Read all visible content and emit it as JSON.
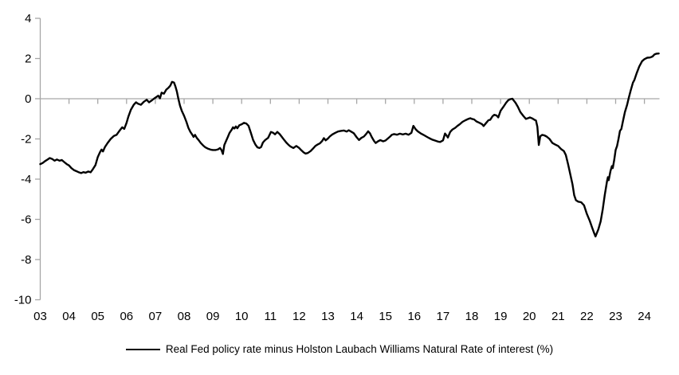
{
  "chart_data": {
    "type": "line",
    "title": "",
    "xlabel": "",
    "ylabel": "",
    "x_unit": "years since Jan 2003 (monthly data)",
    "x_tick_labels": [
      "03",
      "04",
      "05",
      "06",
      "07",
      "08",
      "09",
      "10",
      "11",
      "12",
      "13",
      "14",
      "15",
      "16",
      "17",
      "18",
      "19",
      "20",
      "21",
      "22",
      "23",
      "24"
    ],
    "y_ticks": [
      4,
      2,
      0,
      -2,
      -4,
      -6,
      -8,
      -10
    ],
    "ylim": [
      -10,
      4
    ],
    "xlim": [
      0,
      21.52
    ],
    "grid": "zero-line-only",
    "legend_position": "bottom-center",
    "axis_color": "#a6a6a6",
    "line_color": "#000000",
    "background_color": "#ffffff",
    "series": [
      {
        "name": "Real Fed policy rate minus Holston Laubach Williams Natural Rate of interest (%)",
        "color": "#000000",
        "points": [
          [
            0.0,
            -3.25
          ],
          [
            0.08,
            -3.2
          ],
          [
            0.17,
            -3.1
          ],
          [
            0.25,
            -3.03
          ],
          [
            0.33,
            -2.95
          ],
          [
            0.42,
            -3.0
          ],
          [
            0.5,
            -3.08
          ],
          [
            0.58,
            -3.02
          ],
          [
            0.67,
            -3.08
          ],
          [
            0.75,
            -3.05
          ],
          [
            0.83,
            -3.15
          ],
          [
            0.92,
            -3.25
          ],
          [
            1.0,
            -3.32
          ],
          [
            1.08,
            -3.45
          ],
          [
            1.17,
            -3.55
          ],
          [
            1.25,
            -3.6
          ],
          [
            1.33,
            -3.65
          ],
          [
            1.42,
            -3.7
          ],
          [
            1.5,
            -3.65
          ],
          [
            1.58,
            -3.68
          ],
          [
            1.67,
            -3.62
          ],
          [
            1.75,
            -3.66
          ],
          [
            1.83,
            -3.5
          ],
          [
            1.92,
            -3.3
          ],
          [
            2.0,
            -2.9
          ],
          [
            2.08,
            -2.65
          ],
          [
            2.13,
            -2.53
          ],
          [
            2.18,
            -2.62
          ],
          [
            2.25,
            -2.4
          ],
          [
            2.34,
            -2.2
          ],
          [
            2.45,
            -2.0
          ],
          [
            2.56,
            -1.85
          ],
          [
            2.65,
            -1.8
          ],
          [
            2.75,
            -1.6
          ],
          [
            2.85,
            -1.42
          ],
          [
            2.92,
            -1.5
          ],
          [
            3.0,
            -1.2
          ],
          [
            3.06,
            -0.9
          ],
          [
            3.15,
            -0.55
          ],
          [
            3.25,
            -0.3
          ],
          [
            3.33,
            -0.18
          ],
          [
            3.4,
            -0.25
          ],
          [
            3.5,
            -0.3
          ],
          [
            3.6,
            -0.15
          ],
          [
            3.7,
            -0.05
          ],
          [
            3.78,
            -0.18
          ],
          [
            3.88,
            -0.08
          ],
          [
            3.95,
            0.0
          ],
          [
            4.03,
            0.08
          ],
          [
            4.1,
            0.15
          ],
          [
            4.16,
            0.02
          ],
          [
            4.22,
            0.3
          ],
          [
            4.3,
            0.25
          ],
          [
            4.38,
            0.45
          ],
          [
            4.46,
            0.55
          ],
          [
            4.52,
            0.65
          ],
          [
            4.58,
            0.84
          ],
          [
            4.65,
            0.8
          ],
          [
            4.7,
            0.6
          ],
          [
            4.75,
            0.35
          ],
          [
            4.8,
            0.0
          ],
          [
            4.86,
            -0.35
          ],
          [
            4.92,
            -0.6
          ],
          [
            5.0,
            -0.85
          ],
          [
            5.08,
            -1.15
          ],
          [
            5.15,
            -1.45
          ],
          [
            5.22,
            -1.65
          ],
          [
            5.28,
            -1.78
          ],
          [
            5.33,
            -1.9
          ],
          [
            5.38,
            -1.8
          ],
          [
            5.44,
            -1.95
          ],
          [
            5.5,
            -2.05
          ],
          [
            5.58,
            -2.2
          ],
          [
            5.66,
            -2.32
          ],
          [
            5.74,
            -2.42
          ],
          [
            5.82,
            -2.48
          ],
          [
            5.92,
            -2.53
          ],
          [
            6.0,
            -2.55
          ],
          [
            6.1,
            -2.55
          ],
          [
            6.18,
            -2.52
          ],
          [
            6.25,
            -2.45
          ],
          [
            6.3,
            -2.55
          ],
          [
            6.35,
            -2.75
          ],
          [
            6.4,
            -2.3
          ],
          [
            6.46,
            -2.1
          ],
          [
            6.52,
            -1.9
          ],
          [
            6.58,
            -1.7
          ],
          [
            6.65,
            -1.55
          ],
          [
            6.7,
            -1.42
          ],
          [
            6.75,
            -1.48
          ],
          [
            6.8,
            -1.38
          ],
          [
            6.85,
            -1.47
          ],
          [
            6.92,
            -1.32
          ],
          [
            7.0,
            -1.27
          ],
          [
            7.08,
            -1.2
          ],
          [
            7.16,
            -1.23
          ],
          [
            7.24,
            -1.35
          ],
          [
            7.32,
            -1.7
          ],
          [
            7.4,
            -2.05
          ],
          [
            7.48,
            -2.28
          ],
          [
            7.55,
            -2.42
          ],
          [
            7.62,
            -2.45
          ],
          [
            7.68,
            -2.4
          ],
          [
            7.74,
            -2.18
          ],
          [
            7.82,
            -2.05
          ],
          [
            7.92,
            -1.95
          ],
          [
            8.02,
            -1.65
          ],
          [
            8.1,
            -1.7
          ],
          [
            8.16,
            -1.77
          ],
          [
            8.24,
            -1.65
          ],
          [
            8.32,
            -1.76
          ],
          [
            8.4,
            -1.9
          ],
          [
            8.48,
            -2.05
          ],
          [
            8.55,
            -2.18
          ],
          [
            8.62,
            -2.28
          ],
          [
            8.7,
            -2.38
          ],
          [
            8.8,
            -2.45
          ],
          [
            8.9,
            -2.35
          ],
          [
            9.0,
            -2.45
          ],
          [
            9.08,
            -2.57
          ],
          [
            9.15,
            -2.66
          ],
          [
            9.22,
            -2.73
          ],
          [
            9.3,
            -2.7
          ],
          [
            9.4,
            -2.6
          ],
          [
            9.5,
            -2.45
          ],
          [
            9.57,
            -2.34
          ],
          [
            9.65,
            -2.27
          ],
          [
            9.72,
            -2.22
          ],
          [
            9.8,
            -2.1
          ],
          [
            9.86,
            -1.96
          ],
          [
            9.92,
            -2.07
          ],
          [
            10.0,
            -1.98
          ],
          [
            10.06,
            -1.88
          ],
          [
            10.15,
            -1.78
          ],
          [
            10.25,
            -1.7
          ],
          [
            10.35,
            -1.63
          ],
          [
            10.45,
            -1.6
          ],
          [
            10.55,
            -1.58
          ],
          [
            10.65,
            -1.63
          ],
          [
            10.72,
            -1.57
          ],
          [
            10.8,
            -1.63
          ],
          [
            10.9,
            -1.72
          ],
          [
            11.0,
            -1.92
          ],
          [
            11.08,
            -2.05
          ],
          [
            11.16,
            -1.95
          ],
          [
            11.25,
            -1.88
          ],
          [
            11.33,
            -1.75
          ],
          [
            11.4,
            -1.62
          ],
          [
            11.46,
            -1.72
          ],
          [
            11.52,
            -1.9
          ],
          [
            11.6,
            -2.1
          ],
          [
            11.66,
            -2.2
          ],
          [
            11.74,
            -2.12
          ],
          [
            11.82,
            -2.06
          ],
          [
            11.92,
            -2.12
          ],
          [
            12.0,
            -2.08
          ],
          [
            12.08,
            -1.98
          ],
          [
            12.16,
            -1.88
          ],
          [
            12.22,
            -1.8
          ],
          [
            12.3,
            -1.76
          ],
          [
            12.4,
            -1.79
          ],
          [
            12.5,
            -1.74
          ],
          [
            12.6,
            -1.78
          ],
          [
            12.7,
            -1.74
          ],
          [
            12.8,
            -1.79
          ],
          [
            12.9,
            -1.7
          ],
          [
            12.97,
            -1.35
          ],
          [
            13.05,
            -1.52
          ],
          [
            13.12,
            -1.62
          ],
          [
            13.22,
            -1.72
          ],
          [
            13.32,
            -1.8
          ],
          [
            13.42,
            -1.88
          ],
          [
            13.52,
            -1.96
          ],
          [
            13.62,
            -2.03
          ],
          [
            13.72,
            -2.08
          ],
          [
            13.82,
            -2.13
          ],
          [
            13.9,
            -2.15
          ],
          [
            14.0,
            -2.07
          ],
          [
            14.07,
            -1.73
          ],
          [
            14.12,
            -1.82
          ],
          [
            14.17,
            -1.93
          ],
          [
            14.25,
            -1.65
          ],
          [
            14.33,
            -1.53
          ],
          [
            14.42,
            -1.45
          ],
          [
            14.5,
            -1.35
          ],
          [
            14.58,
            -1.27
          ],
          [
            14.68,
            -1.15
          ],
          [
            14.78,
            -1.07
          ],
          [
            14.88,
            -1.0
          ],
          [
            14.95,
            -0.97
          ],
          [
            15.0,
            -1.0
          ],
          [
            15.08,
            -1.03
          ],
          [
            15.16,
            -1.13
          ],
          [
            15.27,
            -1.2
          ],
          [
            15.36,
            -1.27
          ],
          [
            15.41,
            -1.36
          ],
          [
            15.5,
            -1.2
          ],
          [
            15.58,
            -1.07
          ],
          [
            15.64,
            -1.05
          ],
          [
            15.72,
            -0.87
          ],
          [
            15.78,
            -0.8
          ],
          [
            15.86,
            -0.83
          ],
          [
            15.92,
            -0.93
          ],
          [
            16.0,
            -0.6
          ],
          [
            16.1,
            -0.4
          ],
          [
            16.19,
            -0.2
          ],
          [
            16.27,
            -0.07
          ],
          [
            16.34,
            -0.02
          ],
          [
            16.41,
            0.0
          ],
          [
            16.52,
            -0.2
          ],
          [
            16.6,
            -0.4
          ],
          [
            16.69,
            -0.67
          ],
          [
            16.8,
            -0.87
          ],
          [
            16.88,
            -1.0
          ],
          [
            16.95,
            -0.97
          ],
          [
            17.02,
            -0.93
          ],
          [
            17.1,
            -0.98
          ],
          [
            17.18,
            -1.05
          ],
          [
            17.23,
            -1.08
          ],
          [
            17.28,
            -1.4
          ],
          [
            17.33,
            -2.3
          ],
          [
            17.38,
            -1.87
          ],
          [
            17.45,
            -1.8
          ],
          [
            17.52,
            -1.82
          ],
          [
            17.6,
            -1.88
          ],
          [
            17.7,
            -2.0
          ],
          [
            17.8,
            -2.2
          ],
          [
            17.9,
            -2.28
          ],
          [
            18.0,
            -2.35
          ],
          [
            18.1,
            -2.5
          ],
          [
            18.2,
            -2.6
          ],
          [
            18.27,
            -2.8
          ],
          [
            18.35,
            -3.27
          ],
          [
            18.43,
            -3.8
          ],
          [
            18.5,
            -4.27
          ],
          [
            18.56,
            -4.8
          ],
          [
            18.62,
            -5.05
          ],
          [
            18.7,
            -5.12
          ],
          [
            18.8,
            -5.15
          ],
          [
            18.9,
            -5.3
          ],
          [
            19.0,
            -5.73
          ],
          [
            19.1,
            -6.07
          ],
          [
            19.18,
            -6.4
          ],
          [
            19.25,
            -6.67
          ],
          [
            19.3,
            -6.85
          ],
          [
            19.4,
            -6.5
          ],
          [
            19.48,
            -6.1
          ],
          [
            19.55,
            -5.5
          ],
          [
            19.62,
            -4.8
          ],
          [
            19.7,
            -4.1
          ],
          [
            19.73,
            -3.9
          ],
          [
            19.76,
            -4.05
          ],
          [
            19.82,
            -3.6
          ],
          [
            19.87,
            -3.35
          ],
          [
            19.9,
            -3.45
          ],
          [
            19.95,
            -3.05
          ],
          [
            20.0,
            -2.55
          ],
          [
            20.05,
            -2.35
          ],
          [
            20.1,
            -2.0
          ],
          [
            20.15,
            -1.6
          ],
          [
            20.2,
            -1.5
          ],
          [
            20.25,
            -1.15
          ],
          [
            20.32,
            -0.67
          ],
          [
            20.4,
            -0.3
          ],
          [
            20.45,
            0.0
          ],
          [
            20.52,
            0.4
          ],
          [
            20.6,
            0.8
          ],
          [
            20.65,
            0.93
          ],
          [
            20.73,
            1.27
          ],
          [
            20.82,
            1.6
          ],
          [
            20.92,
            1.87
          ],
          [
            21.0,
            1.97
          ],
          [
            21.1,
            2.04
          ],
          [
            21.2,
            2.05
          ],
          [
            21.28,
            2.1
          ],
          [
            21.35,
            2.2
          ],
          [
            21.42,
            2.24
          ],
          [
            21.5,
            2.25
          ]
        ]
      }
    ]
  },
  "legend": {
    "label": "Real Fed policy rate minus Holston Laubach Williams Natural Rate of interest (%)"
  }
}
